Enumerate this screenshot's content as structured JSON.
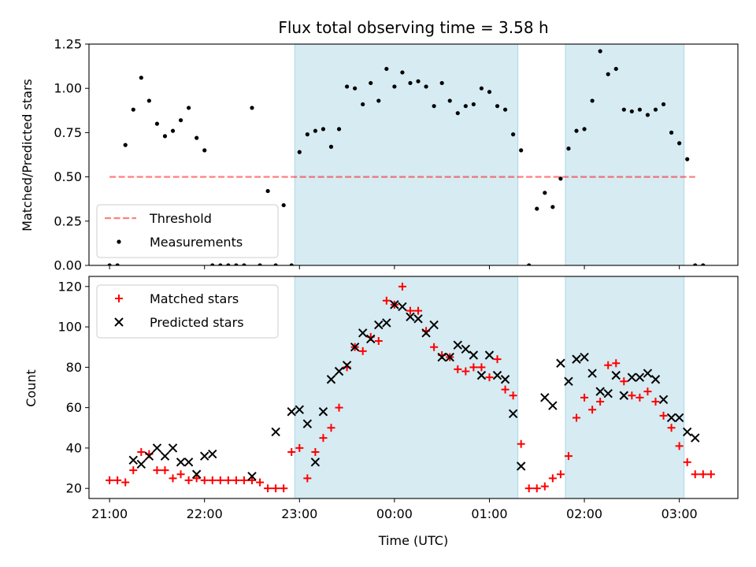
{
  "chart_data": [
    {
      "type": "scatter",
      "title": "Flux total observing time = 3.58 h",
      "xlabel": "",
      "ylabel": "Matched/Predicted stars",
      "xlim": [
        "20:47",
        "03:37"
      ],
      "ylim": [
        0,
        1.25
      ],
      "yticks": [
        "0.00",
        "0.25",
        "0.50",
        "0.75",
        "1.00",
        "1.25"
      ],
      "threshold": 0.5,
      "threshold_range": [
        "21:00",
        "03:10"
      ],
      "shaded_intervals": [
        [
          "22:57",
          "01:18"
        ],
        [
          "01:48",
          "03:03"
        ]
      ],
      "legend": {
        "position": "lower-left",
        "entries": [
          "Threshold",
          "Measurements"
        ]
      },
      "series": [
        {
          "name": "Measurements",
          "color": "#000000",
          "points": [
            [
              "21:00",
              0.0
            ],
            [
              "21:05",
              0.0
            ],
            [
              "21:10",
              0.68
            ],
            [
              "21:15",
              0.88
            ],
            [
              "21:20",
              1.06
            ],
            [
              "21:25",
              0.93
            ],
            [
              "21:30",
              0.8
            ],
            [
              "21:35",
              0.73
            ],
            [
              "21:40",
              0.76
            ],
            [
              "21:45",
              0.82
            ],
            [
              "21:50",
              0.89
            ],
            [
              "21:55",
              0.72
            ],
            [
              "22:00",
              0.65
            ],
            [
              "22:05",
              0.0
            ],
            [
              "22:10",
              0.0
            ],
            [
              "22:15",
              0.0
            ],
            [
              "22:20",
              0.0
            ],
            [
              "22:25",
              0.0
            ],
            [
              "22:30",
              0.89
            ],
            [
              "22:35",
              0.0
            ],
            [
              "22:40",
              0.42
            ],
            [
              "22:45",
              0.0
            ],
            [
              "22:50",
              0.34
            ],
            [
              "22:55",
              0.0
            ],
            [
              "23:00",
              0.64
            ],
            [
              "23:05",
              0.74
            ],
            [
              "23:10",
              0.76
            ],
            [
              "23:15",
              0.77
            ],
            [
              "23:20",
              0.67
            ],
            [
              "23:25",
              0.77
            ],
            [
              "23:30",
              1.01
            ],
            [
              "23:35",
              1.0
            ],
            [
              "23:40",
              0.91
            ],
            [
              "23:45",
              1.03
            ],
            [
              "23:50",
              0.93
            ],
            [
              "23:55",
              1.11
            ],
            [
              "00:00",
              1.01
            ],
            [
              "00:05",
              1.09
            ],
            [
              "00:10",
              1.03
            ],
            [
              "00:15",
              1.04
            ],
            [
              "00:20",
              1.01
            ],
            [
              "00:25",
              0.9
            ],
            [
              "00:30",
              1.03
            ],
            [
              "00:35",
              0.93
            ],
            [
              "00:40",
              0.86
            ],
            [
              "00:45",
              0.9
            ],
            [
              "00:50",
              0.91
            ],
            [
              "00:55",
              1.0
            ],
            [
              "01:00",
              0.98
            ],
            [
              "01:05",
              0.9
            ],
            [
              "01:10",
              0.88
            ],
            [
              "01:15",
              0.74
            ],
            [
              "01:20",
              0.65
            ],
            [
              "01:25",
              0.0
            ],
            [
              "01:30",
              0.32
            ],
            [
              "01:35",
              0.41
            ],
            [
              "01:40",
              0.33
            ],
            [
              "01:45",
              0.49
            ],
            [
              "01:50",
              0.66
            ],
            [
              "01:55",
              0.76
            ],
            [
              "02:00",
              0.77
            ],
            [
              "02:05",
              0.93
            ],
            [
              "02:10",
              1.21
            ],
            [
              "02:15",
              1.08
            ],
            [
              "02:20",
              1.11
            ],
            [
              "02:25",
              0.88
            ],
            [
              "02:30",
              0.87
            ],
            [
              "02:35",
              0.88
            ],
            [
              "02:40",
              0.85
            ],
            [
              "02:45",
              0.88
            ],
            [
              "02:50",
              0.91
            ],
            [
              "02:55",
              0.75
            ],
            [
              "03:00",
              0.69
            ],
            [
              "03:05",
              0.6
            ],
            [
              "03:10",
              0.0
            ],
            [
              "03:15",
              0.0
            ]
          ]
        }
      ]
    },
    {
      "type": "scatter",
      "title": "",
      "xlabel": "Time (UTC)",
      "ylabel": "Count",
      "xlim": [
        "20:47",
        "03:37"
      ],
      "ylim": [
        15,
        125
      ],
      "yticks": [
        "20",
        "40",
        "60",
        "80",
        "100",
        "120"
      ],
      "xticks": [
        "21:00",
        "22:00",
        "23:00",
        "00:00",
        "01:00",
        "02:00",
        "03:00"
      ],
      "shaded_intervals": [
        [
          "22:57",
          "01:18"
        ],
        [
          "01:48",
          "03:03"
        ]
      ],
      "legend": {
        "position": "top-left",
        "entries": [
          "Matched stars",
          "Predicted stars"
        ]
      },
      "series": [
        {
          "name": "Matched stars",
          "color": "#ff0000",
          "marker": "plus",
          "points": [
            [
              "21:00",
              24
            ],
            [
              "21:05",
              24
            ],
            [
              "21:10",
              23
            ],
            [
              "21:15",
              29
            ],
            [
              "21:20",
              38
            ],
            [
              "21:25",
              37
            ],
            [
              "21:30",
              29
            ],
            [
              "21:35",
              29
            ],
            [
              "21:40",
              25
            ],
            [
              "21:45",
              27
            ],
            [
              "21:50",
              24
            ],
            [
              "21:55",
              25
            ],
            [
              "22:00",
              24
            ],
            [
              "22:05",
              24
            ],
            [
              "22:10",
              24
            ],
            [
              "22:15",
              24
            ],
            [
              "22:20",
              24
            ],
            [
              "22:25",
              24
            ],
            [
              "22:30",
              24
            ],
            [
              "22:35",
              23
            ],
            [
              "22:40",
              20
            ],
            [
              "22:45",
              20
            ],
            [
              "22:50",
              20
            ],
            [
              "22:55",
              38
            ],
            [
              "23:00",
              40
            ],
            [
              "23:05",
              25
            ],
            [
              "23:10",
              38
            ],
            [
              "23:15",
              45
            ],
            [
              "23:20",
              50
            ],
            [
              "23:25",
              60
            ],
            [
              "23:30",
              80
            ],
            [
              "23:35",
              90
            ],
            [
              "23:40",
              88
            ],
            [
              "23:45",
              95
            ],
            [
              "23:50",
              93
            ],
            [
              "23:55",
              113
            ],
            [
              "00:00",
              111
            ],
            [
              "00:05",
              120
            ],
            [
              "00:10",
              108
            ],
            [
              "00:15",
              108
            ],
            [
              "00:20",
              98
            ],
            [
              "00:25",
              90
            ],
            [
              "00:30",
              86
            ],
            [
              "00:35",
              85
            ],
            [
              "00:40",
              79
            ],
            [
              "00:45",
              78
            ],
            [
              "00:50",
              80
            ],
            [
              "00:55",
              80
            ],
            [
              "01:00",
              75
            ],
            [
              "01:05",
              84
            ],
            [
              "01:10",
              69
            ],
            [
              "01:15",
              66
            ],
            [
              "01:20",
              42
            ],
            [
              "01:25",
              20
            ],
            [
              "01:30",
              20
            ],
            [
              "01:35",
              21
            ],
            [
              "01:40",
              25
            ],
            [
              "01:45",
              27
            ],
            [
              "01:50",
              36
            ],
            [
              "01:55",
              55
            ],
            [
              "02:00",
              65
            ],
            [
              "02:05",
              59
            ],
            [
              "02:10",
              63
            ],
            [
              "02:15",
              81
            ],
            [
              "02:20",
              82
            ],
            [
              "02:25",
              73
            ],
            [
              "02:30",
              66
            ],
            [
              "02:35",
              65
            ],
            [
              "02:40",
              68
            ],
            [
              "02:45",
              63
            ],
            [
              "02:50",
              56
            ],
            [
              "02:55",
              50
            ],
            [
              "03:00",
              41
            ],
            [
              "03:05",
              33
            ],
            [
              "03:10",
              27
            ],
            [
              "03:15",
              27
            ],
            [
              "03:20",
              27
            ]
          ]
        },
        {
          "name": "Predicted stars",
          "color": "#000000",
          "marker": "x",
          "points": [
            [
              "21:15",
              34
            ],
            [
              "21:20",
              32
            ],
            [
              "21:25",
              36
            ],
            [
              "21:30",
              40
            ],
            [
              "21:35",
              36
            ],
            [
              "21:40",
              40
            ],
            [
              "21:45",
              33
            ],
            [
              "21:50",
              33
            ],
            [
              "21:55",
              27
            ],
            [
              "22:00",
              36
            ],
            [
              "22:05",
              37
            ],
            [
              "22:30",
              26
            ],
            [
              "22:45",
              48
            ],
            [
              "22:55",
              58
            ],
            [
              "23:00",
              59
            ],
            [
              "23:05",
              52
            ],
            [
              "23:10",
              33
            ],
            [
              "23:15",
              58
            ],
            [
              "23:20",
              74
            ],
            [
              "23:25",
              78
            ],
            [
              "23:30",
              81
            ],
            [
              "23:35",
              90
            ],
            [
              "23:40",
              97
            ],
            [
              "23:45",
              94
            ],
            [
              "23:50",
              101
            ],
            [
              "23:55",
              102
            ],
            [
              "00:00",
              111
            ],
            [
              "00:05",
              110
            ],
            [
              "00:10",
              105
            ],
            [
              "00:15",
              104
            ],
            [
              "00:20",
              97
            ],
            [
              "00:25",
              101
            ],
            [
              "00:30",
              85
            ],
            [
              "00:35",
              85
            ],
            [
              "00:40",
              91
            ],
            [
              "00:45",
              89
            ],
            [
              "00:50",
              86
            ],
            [
              "00:55",
              76
            ],
            [
              "01:00",
              86
            ],
            [
              "01:05",
              76
            ],
            [
              "01:10",
              74
            ],
            [
              "01:15",
              57
            ],
            [
              "01:20",
              31
            ],
            [
              "01:35",
              65
            ],
            [
              "01:40",
              61
            ],
            [
              "01:45",
              82
            ],
            [
              "01:50",
              73
            ],
            [
              "01:55",
              84
            ],
            [
              "02:00",
              85
            ],
            [
              "02:05",
              77
            ],
            [
              "02:10",
              68
            ],
            [
              "02:15",
              67
            ],
            [
              "02:20",
              76
            ],
            [
              "02:25",
              66
            ],
            [
              "02:30",
              75
            ],
            [
              "02:35",
              75
            ],
            [
              "02:40",
              77
            ],
            [
              "02:45",
              74
            ],
            [
              "02:50",
              64
            ],
            [
              "02:55",
              55
            ],
            [
              "03:00",
              55
            ],
            [
              "03:05",
              48
            ],
            [
              "03:10",
              45
            ]
          ]
        }
      ]
    }
  ]
}
